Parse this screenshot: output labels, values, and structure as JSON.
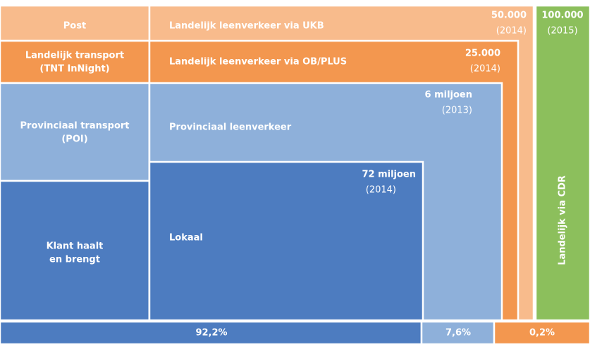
{
  "left_column": [
    {
      "lines": [
        "Post"
      ]
    },
    {
      "lines": [
        "Landelijk transport",
        "(TNT InNight)"
      ]
    },
    {
      "lines": [
        "Provinciaal transport",
        "(POI)"
      ]
    },
    {
      "lines": [
        "Klant haalt",
        "en brengt"
      ]
    }
  ],
  "blocks": [
    {
      "label": "Landelijk leenverkeer via UKB",
      "amount": "50.000",
      "year": "(2014)"
    },
    {
      "label": "Landelijk leenverkeer via OB/PLUS",
      "amount": "25.000",
      "year": "(2014)"
    },
    {
      "label": "Provinciaal leenverkeer",
      "amount": "6 miljoen",
      "year": "(2013)"
    },
    {
      "label": "Lokaal",
      "amount": "72 miljoen",
      "year": "(2014)"
    }
  ],
  "cdr": {
    "label": "Landelijk via CDR",
    "amount": "100.000",
    "year": "(2015)"
  },
  "shares": [
    "92,2%",
    "7,6%",
    "0,2%"
  ]
}
